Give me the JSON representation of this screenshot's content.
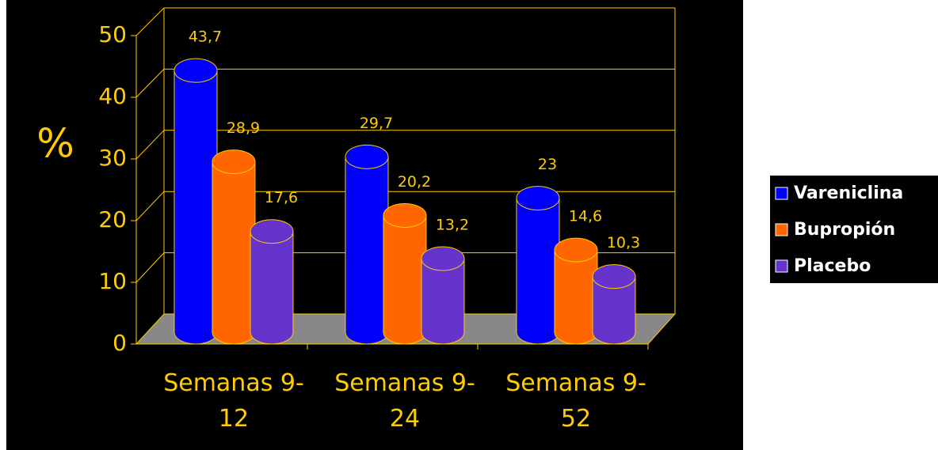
{
  "chart_data": {
    "type": "bar3d",
    "y_label": "%",
    "categories": [
      "Semanas 9-12",
      "Semanas 9-24",
      "Semanas 9-52"
    ],
    "series": [
      {
        "name": "Vareniclina",
        "color": "#0000ff",
        "values": [
          43.7,
          29.7,
          23
        ],
        "value_labels": [
          "43,7",
          "29,7",
          "23"
        ]
      },
      {
        "name": "Bupropión",
        "color": "#ff6600",
        "values": [
          28.9,
          20.2,
          14.6
        ],
        "value_labels": [
          "28,9",
          "20,2",
          "14,6"
        ]
      },
      {
        "name": "Placebo",
        "color": "#6633cc",
        "values": [
          17.6,
          13.2,
          10.3
        ],
        "value_labels": [
          "17,6",
          "13,2",
          "10,3"
        ]
      }
    ],
    "ylim": [
      0,
      50
    ],
    "yticks": [
      0,
      10,
      20,
      30,
      40,
      50
    ],
    "grid": true,
    "legend": "right"
  }
}
